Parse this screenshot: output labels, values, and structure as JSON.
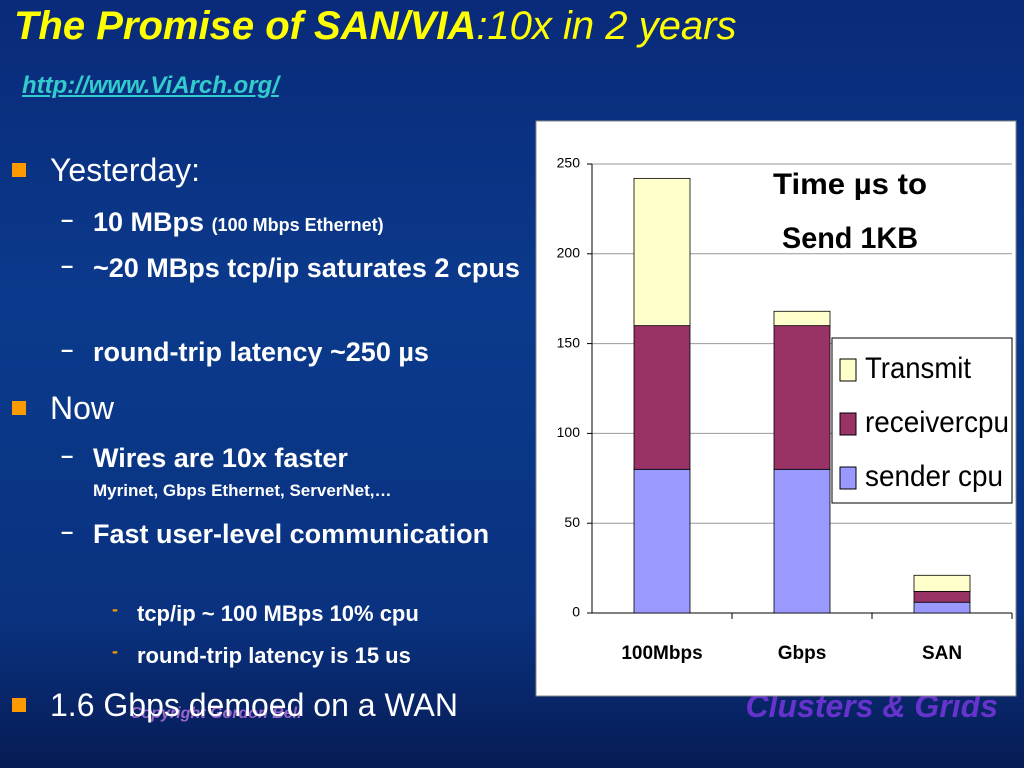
{
  "title": {
    "main": "The Promise of SAN/VIA",
    "rest": ":10x in 2 years"
  },
  "link": "http://www.ViArch.org/",
  "bullets": [
    {
      "level": 0,
      "text": "Yesterday:"
    },
    {
      "level": 1,
      "text": "10 MBps",
      "note": "(100 Mbps Ethernet)"
    },
    {
      "level": 1,
      "text": "~20 MBps tcp/ip saturates 2 cpus"
    },
    {
      "level": 1,
      "text": "round-trip latency ~250 µs"
    },
    {
      "level": 0,
      "text": "Now"
    },
    {
      "level": 1,
      "text": "Wires are 10x faster",
      "sub": "Myrinet, Gbps Ethernet, ServerNet,…"
    },
    {
      "level": 1,
      "text": "Fast user-level communication"
    },
    {
      "level": 2,
      "text": "tcp/ip ~  100 MBps 10% cpu"
    },
    {
      "level": 2,
      "text": "round-trip latency is 15 us"
    },
    {
      "level": 0,
      "text": "1.6 Gbps demoed on a WAN"
    }
  ],
  "footer": {
    "left": "Copyright Gordon Bell",
    "right": "Clusters & Grids"
  },
  "chart_data": {
    "type": "stacked_bar",
    "title": [
      "Time µs  to",
      "Send 1KB"
    ],
    "categories": [
      "100Mbps",
      "Gbps",
      "SAN"
    ],
    "series": [
      {
        "name": "sender cpu",
        "color": "#9999ff",
        "values": [
          80,
          80,
          6
        ]
      },
      {
        "name": "receivercpu",
        "color": "#993366",
        "values": [
          80,
          80,
          6
        ]
      },
      {
        "name": "Transmit",
        "color": "#ffffcc",
        "values": [
          82,
          8,
          9
        ]
      }
    ],
    "ylim": [
      0,
      250
    ],
    "yticks": [
      0,
      50,
      100,
      150,
      200,
      250
    ],
    "grid": true
  }
}
